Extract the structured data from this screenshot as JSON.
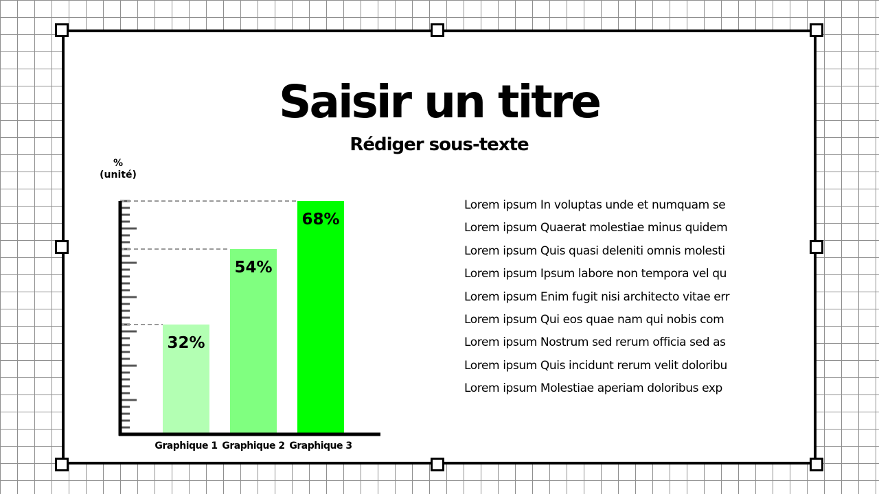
{
  "slide": {
    "title": "Saisir un titre",
    "subtitle": "Rédiger sous-texte"
  },
  "chart_data": {
    "type": "bar",
    "ylabel": "%\n(unité)",
    "categories": [
      "Graphique 1",
      "Graphique 2",
      "Graphique 3"
    ],
    "values": [
      32,
      54,
      68
    ],
    "data_labels": [
      "32%",
      "54%",
      "68%"
    ],
    "colors": [
      "#b3ffb3",
      "#80ff80",
      "#00ff00"
    ],
    "ylim": [
      0,
      68
    ],
    "grid": false,
    "reference_lines": "dashed lines at each bar top"
  },
  "text_lines": [
    "Lorem ipsum In voluptas unde et numquam se",
    "Lorem ipsum Quaerat molestiae minus quidem",
    "Lorem ipsum Quis quasi deleniti omnis molesti",
    "Lorem ipsum Ipsum labore non tempora vel qu",
    "Lorem ipsum Enim fugit nisi architecto vitae err",
    "Lorem ipsum Qui eos quae nam qui nobis com",
    "Lorem ipsum Nostrum sed rerum officia sed as",
    "Lorem ipsum Quis incidunt rerum velit doloribu",
    "Lorem ipsum Molestiae aperiam doloribus exp"
  ]
}
